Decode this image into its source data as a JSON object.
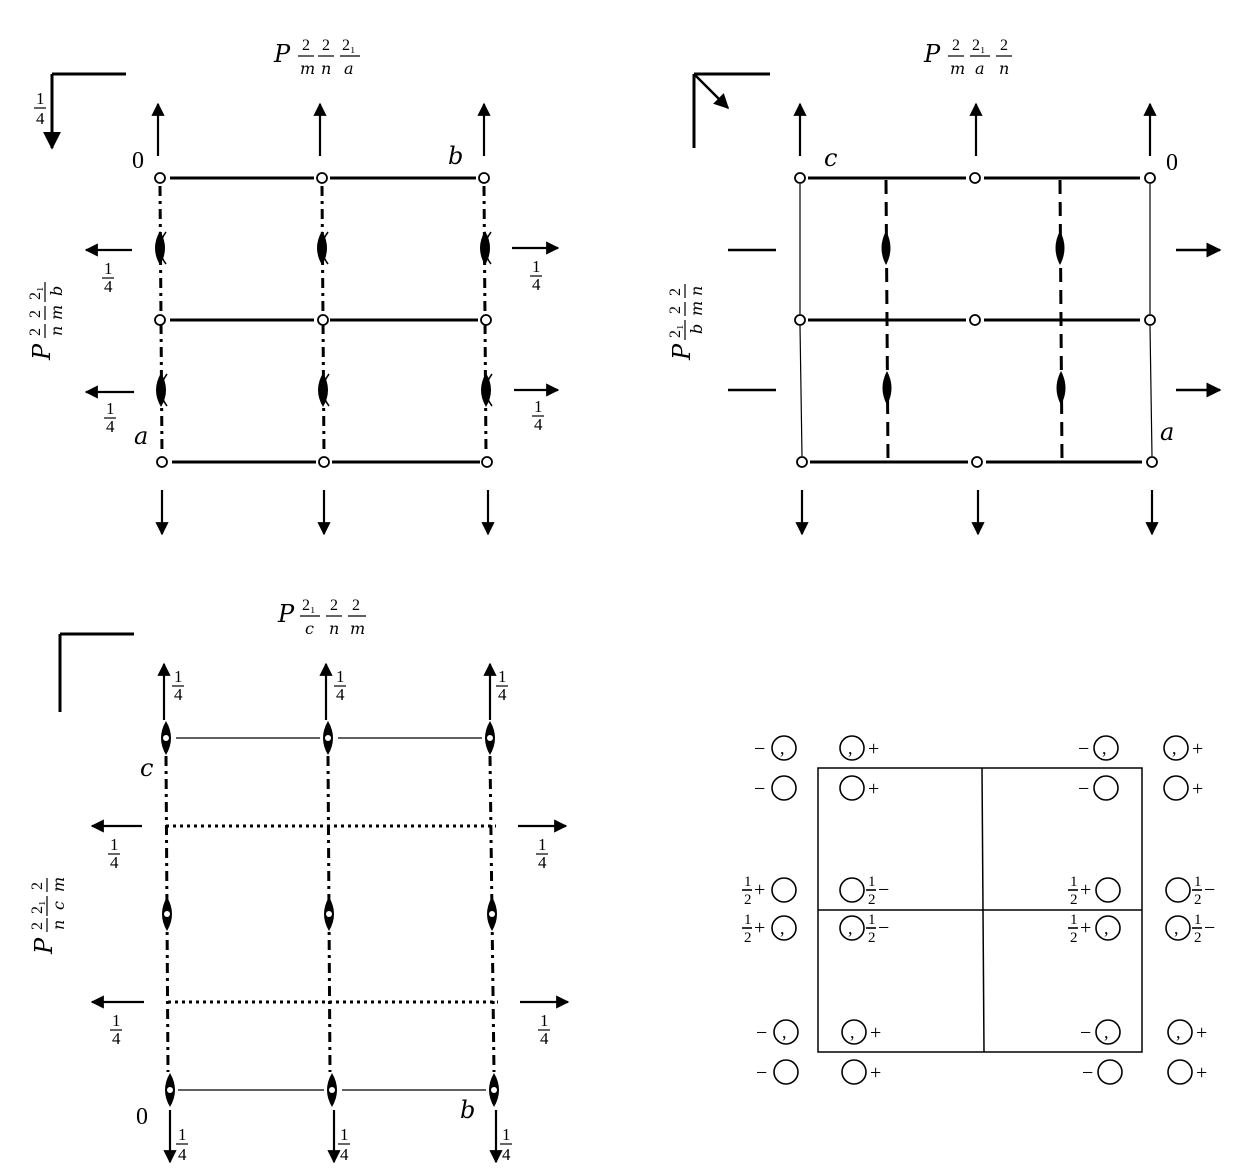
{
  "panel1": {
    "top_symbol": {
      "lead": "P",
      "parts": [
        [
          "2",
          "m"
        ],
        [
          "2",
          "n"
        ],
        [
          "2₁",
          "a"
        ]
      ]
    },
    "side_symbol": {
      "lead": "P",
      "parts": [
        [
          "2",
          "n"
        ],
        [
          "2",
          "m"
        ],
        [
          "2₁",
          "b"
        ]
      ]
    },
    "origin": "0",
    "axis_b": "b",
    "axis_a": "a",
    "inset_fraction": [
      "1",
      "4"
    ],
    "side_fraction": [
      "1",
      "4"
    ]
  },
  "panel2": {
    "top_symbol": {
      "lead": "P",
      "parts": [
        [
          "2",
          "m"
        ],
        [
          "2₁",
          "a"
        ],
        [
          "2",
          "n"
        ]
      ]
    },
    "side_symbol": {
      "lead": "P",
      "parts": [
        [
          "2₁",
          "b"
        ],
        [
          "2",
          "m"
        ],
        [
          "2",
          "n"
        ]
      ]
    },
    "origin": "0",
    "axis_c": "c",
    "axis_a": "a"
  },
  "panel3": {
    "top_symbol": {
      "lead": "P",
      "parts": [
        [
          "2₁",
          "c"
        ],
        [
          "2",
          "n"
        ],
        [
          "2",
          "m"
        ]
      ]
    },
    "side_symbol": {
      "lead": "P",
      "parts": [
        [
          "2",
          "n"
        ],
        [
          "2₁",
          "c"
        ],
        [
          "2",
          "m"
        ]
      ]
    },
    "origin": "0",
    "axis_c": "c",
    "axis_b": "b",
    "fraction": [
      "1",
      "4"
    ]
  },
  "panel4": {
    "minus": "−",
    "plus": "+",
    "half_num": "1",
    "half_den": "2",
    "comma": ","
  }
}
